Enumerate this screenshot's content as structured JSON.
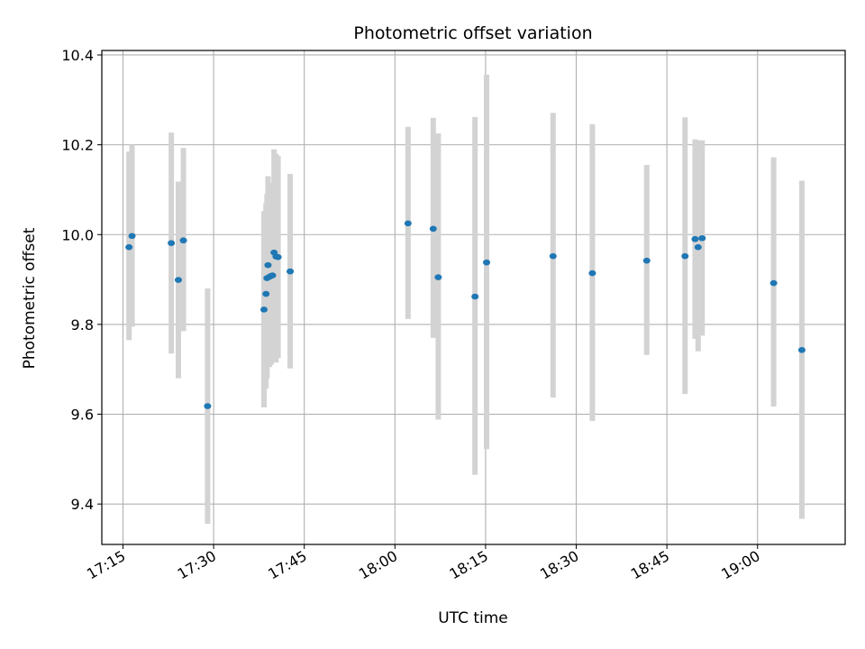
{
  "chart_data": {
    "type": "scatter",
    "title": "Photometric offset variation",
    "xlabel": "UTC time",
    "ylabel": "Photometric offset",
    "x_tick_labels": [
      "17:15",
      "17:30",
      "17:45",
      "18:00",
      "18:15",
      "18:30",
      "18:45",
      "19:00"
    ],
    "y_tick_labels": [
      "9.4",
      "9.6",
      "9.8",
      "10.0",
      "10.2",
      "10.4"
    ],
    "ylim": [
      9.31,
      10.41
    ],
    "xlim": [
      "17:11:30",
      "19:14:30"
    ],
    "grid": true,
    "errorbar_color": "#d3d3d3",
    "marker_color": "#1f77b4",
    "points": [
      {
        "x": "17:16:00",
        "y": 9.972,
        "low": 9.765,
        "high": 10.185
      },
      {
        "x": "17:16:30",
        "y": 9.997,
        "low": 9.795,
        "high": 10.2
      },
      {
        "x": "17:23:00",
        "y": 9.981,
        "low": 9.735,
        "high": 10.227
      },
      {
        "x": "17:24:10",
        "y": 9.899,
        "low": 9.68,
        "high": 10.118
      },
      {
        "x": "17:25:00",
        "y": 9.987,
        "low": 9.785,
        "high": 10.193
      },
      {
        "x": "17:29:00",
        "y": 9.618,
        "low": 9.356,
        "high": 9.88
      },
      {
        "x": "17:38:20",
        "y": 9.833,
        "low": 9.615,
        "high": 10.052
      },
      {
        "x": "17:38:40",
        "y": 9.868,
        "low": 9.657,
        "high": 10.07
      },
      {
        "x": "17:38:50",
        "y": 9.903,
        "low": 9.68,
        "high": 10.09
      },
      {
        "x": "17:39:00",
        "y": 9.932,
        "low": 9.71,
        "high": 10.13
      },
      {
        "x": "17:39:15",
        "y": 9.906,
        "low": 9.705,
        "high": 10.11
      },
      {
        "x": "17:39:30",
        "y": 9.908,
        "low": 9.71,
        "high": 10.115
      },
      {
        "x": "17:39:45",
        "y": 9.909,
        "low": 9.72,
        "high": 10.1
      },
      {
        "x": "17:40:00",
        "y": 9.96,
        "low": 9.725,
        "high": 10.19
      },
      {
        "x": "17:40:20",
        "y": 9.951,
        "low": 9.715,
        "high": 10.18
      },
      {
        "x": "17:40:40",
        "y": 9.95,
        "low": 9.725,
        "high": 10.175
      },
      {
        "x": "17:42:40",
        "y": 9.918,
        "low": 9.702,
        "high": 10.135
      },
      {
        "x": "18:02:10",
        "y": 10.025,
        "low": 9.812,
        "high": 10.24
      },
      {
        "x": "18:06:20",
        "y": 10.013,
        "low": 9.77,
        "high": 10.26
      },
      {
        "x": "18:07:10",
        "y": 9.905,
        "low": 9.588,
        "high": 10.225
      },
      {
        "x": "18:13:15",
        "y": 9.862,
        "low": 9.465,
        "high": 10.262
      },
      {
        "x": "18:15:10",
        "y": 9.938,
        "low": 9.522,
        "high": 10.356
      },
      {
        "x": "18:26:10",
        "y": 9.952,
        "low": 9.637,
        "high": 10.271
      },
      {
        "x": "18:32:40",
        "y": 9.914,
        "low": 9.585,
        "high": 10.246
      },
      {
        "x": "18:41:40",
        "y": 9.942,
        "low": 9.732,
        "high": 10.155
      },
      {
        "x": "18:48:00",
        "y": 9.952,
        "low": 9.645,
        "high": 10.261
      },
      {
        "x": "18:49:40",
        "y": 9.99,
        "low": 9.768,
        "high": 10.212
      },
      {
        "x": "18:50:10",
        "y": 9.972,
        "low": 9.74,
        "high": 10.21
      },
      {
        "x": "18:50:50",
        "y": 9.992,
        "low": 9.775,
        "high": 10.21
      },
      {
        "x": "19:02:40",
        "y": 9.892,
        "low": 9.617,
        "high": 10.172
      },
      {
        "x": "19:07:20",
        "y": 9.743,
        "low": 9.367,
        "high": 10.12
      }
    ]
  }
}
